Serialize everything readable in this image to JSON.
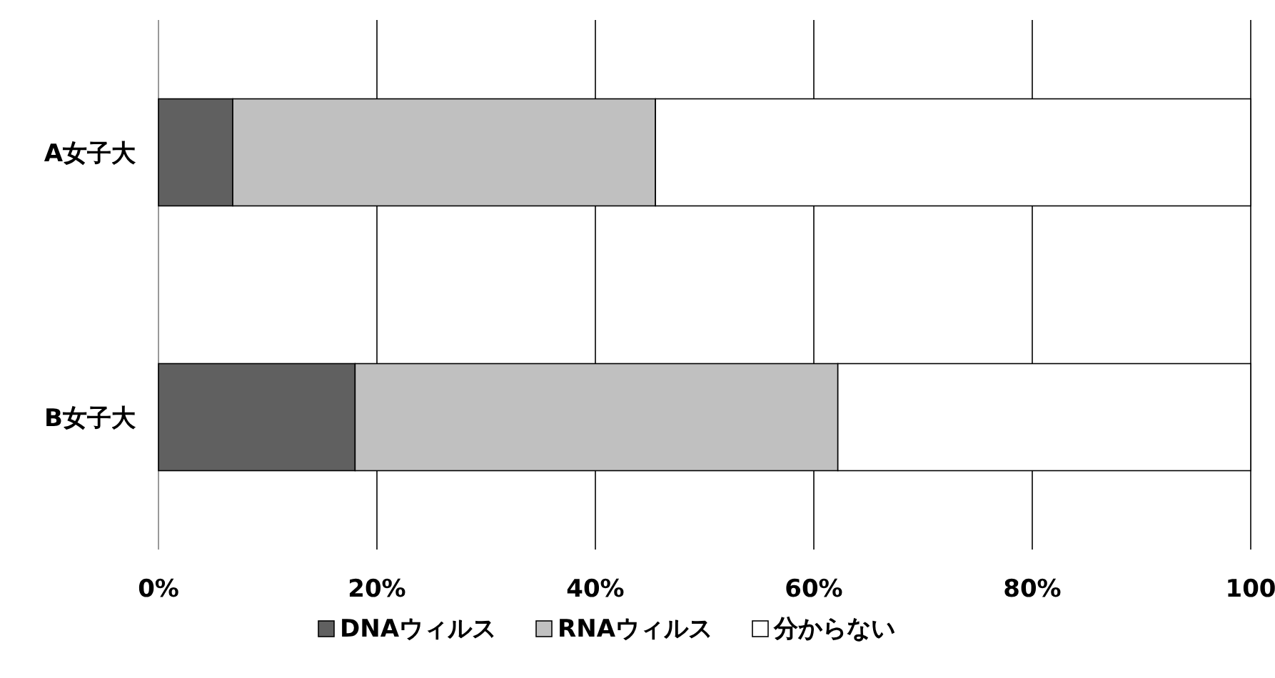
{
  "chart_data": {
    "type": "bar",
    "orientation": "horizontal",
    "stacked": true,
    "categories": [
      "A女子大",
      "B女子大"
    ],
    "series": [
      {
        "name": "DNAウィルス",
        "color": "#606060",
        "values": [
          6.8,
          18.0
        ]
      },
      {
        "name": "RNAウィルス",
        "color": "#c0c0c0",
        "values": [
          38.7,
          44.2
        ]
      },
      {
        "name": "分からない",
        "color": "#ffffff",
        "values": [
          54.5,
          37.8
        ]
      }
    ],
    "xlim": [
      0,
      100
    ],
    "xticks": [
      {
        "value": 0,
        "label": "0%"
      },
      {
        "value": 20,
        "label": "20%"
      },
      {
        "value": 40,
        "label": "40%"
      },
      {
        "value": 60,
        "label": "60%"
      },
      {
        "value": 80,
        "label": "80%"
      },
      {
        "value": 100,
        "label": "100"
      }
    ],
    "grid": "x",
    "legend": "bottom"
  }
}
